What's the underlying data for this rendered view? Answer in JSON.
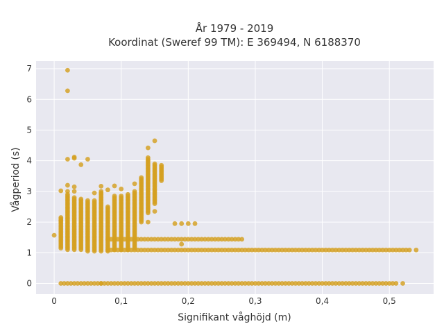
{
  "chart_data": {
    "type": "scatter",
    "title_line1": "År 1979 - 2019",
    "title_line2": "Koordinat (Sweref 99 TM): E 369494, N 6188370",
    "xlabel": "Signifikant våghöjd (m)",
    "ylabel": "Vågperiod (s)",
    "xlim": [
      -0.027,
      0.566
    ],
    "ylim": [
      -0.35,
      7.25
    ],
    "x_ticks": [
      {
        "value": 0,
        "label": "0"
      },
      {
        "value": 0.1,
        "label": "0,1"
      },
      {
        "value": 0.2,
        "label": "0,2"
      },
      {
        "value": 0.3,
        "label": "0,3"
      },
      {
        "value": 0.4,
        "label": "0,4"
      },
      {
        "value": 0.5,
        "label": "0,5"
      }
    ],
    "y_ticks": [
      {
        "value": 0,
        "label": "0"
      },
      {
        "value": 1,
        "label": "1"
      },
      {
        "value": 2,
        "label": "2"
      },
      {
        "value": 3,
        "label": "3"
      },
      {
        "value": 4,
        "label": "4"
      },
      {
        "value": 5,
        "label": "5"
      },
      {
        "value": 6,
        "label": "6"
      },
      {
        "value": 7,
        "label": "7"
      }
    ],
    "grid": true,
    "legend": "none",
    "colors": {
      "marker": "#D4A020",
      "plot_bg": "#E8E8F0",
      "grid": "#FFFFFF"
    },
    "columns": [
      {
        "x": 0.01,
        "y": [
          1.15,
          2.15
        ]
      },
      {
        "x": 0.02,
        "y": [
          1.1,
          2.9
        ]
      },
      {
        "x": 0.03,
        "y": [
          1.1,
          2.8
        ]
      },
      {
        "x": 0.04,
        "y": [
          1.1,
          2.75
        ]
      },
      {
        "x": 0.05,
        "y": [
          1.05,
          2.7
        ]
      },
      {
        "x": 0.06,
        "y": [
          1.05,
          2.7
        ]
      },
      {
        "x": 0.07,
        "y": [
          1.05,
          2.95
        ]
      },
      {
        "x": 0.08,
        "y": [
          1.05,
          2.5
        ]
      },
      {
        "x": 0.09,
        "y": [
          1.1,
          2.85
        ]
      },
      {
        "x": 0.1,
        "y": [
          1.1,
          2.85
        ]
      },
      {
        "x": 0.11,
        "y": [
          1.1,
          2.9
        ]
      },
      {
        "x": 0.12,
        "y": [
          1.15,
          3.0
        ]
      },
      {
        "x": 0.13,
        "y": [
          2.0,
          3.45
        ]
      },
      {
        "x": 0.14,
        "y": [
          2.3,
          4.1
        ]
      },
      {
        "x": 0.15,
        "y": [
          2.6,
          3.9
        ]
      },
      {
        "x": 0.16,
        "y": [
          3.35,
          3.85
        ]
      }
    ],
    "rows": [
      {
        "y": 0.0,
        "x": [
          0.01,
          0.51
        ]
      },
      {
        "y": 1.09,
        "x": 0.08,
        "x_end": 0.53
      },
      {
        "y": 1.44,
        "x": 0.08,
        "x_end": 0.28
      }
    ],
    "points": [
      {
        "x": 0.0,
        "y": 1.57
      },
      {
        "x": 0.01,
        "y": 3.02
      },
      {
        "x": 0.01,
        "y": 2.05
      },
      {
        "x": 0.02,
        "y": 6.95
      },
      {
        "x": 0.02,
        "y": 6.28
      },
      {
        "x": 0.02,
        "y": 4.05
      },
      {
        "x": 0.02,
        "y": 3.2
      },
      {
        "x": 0.02,
        "y": 3.0
      },
      {
        "x": 0.03,
        "y": 4.12
      },
      {
        "x": 0.03,
        "y": 4.08
      },
      {
        "x": 0.03,
        "y": 3.15
      },
      {
        "x": 0.03,
        "y": 3.0
      },
      {
        "x": 0.04,
        "y": 3.87
      },
      {
        "x": 0.05,
        "y": 4.05
      },
      {
        "x": 0.06,
        "y": 2.95
      },
      {
        "x": 0.07,
        "y": 3.17
      },
      {
        "x": 0.07,
        "y": 3.0
      },
      {
        "x": 0.07,
        "y": 0.0
      },
      {
        "x": 0.08,
        "y": 3.05
      },
      {
        "x": 0.09,
        "y": 3.18
      },
      {
        "x": 0.1,
        "y": 3.08
      },
      {
        "x": 0.12,
        "y": 3.25
      },
      {
        "x": 0.14,
        "y": 4.42
      },
      {
        "x": 0.14,
        "y": 2.0
      },
      {
        "x": 0.15,
        "y": 4.65
      },
      {
        "x": 0.15,
        "y": 2.35
      },
      {
        "x": 0.18,
        "y": 1.95
      },
      {
        "x": 0.19,
        "y": 1.95
      },
      {
        "x": 0.2,
        "y": 1.95
      },
      {
        "x": 0.21,
        "y": 1.95
      },
      {
        "x": 0.19,
        "y": 1.28
      },
      {
        "x": 0.52,
        "y": 0.0
      },
      {
        "x": 0.54,
        "y": 1.09
      }
    ]
  }
}
